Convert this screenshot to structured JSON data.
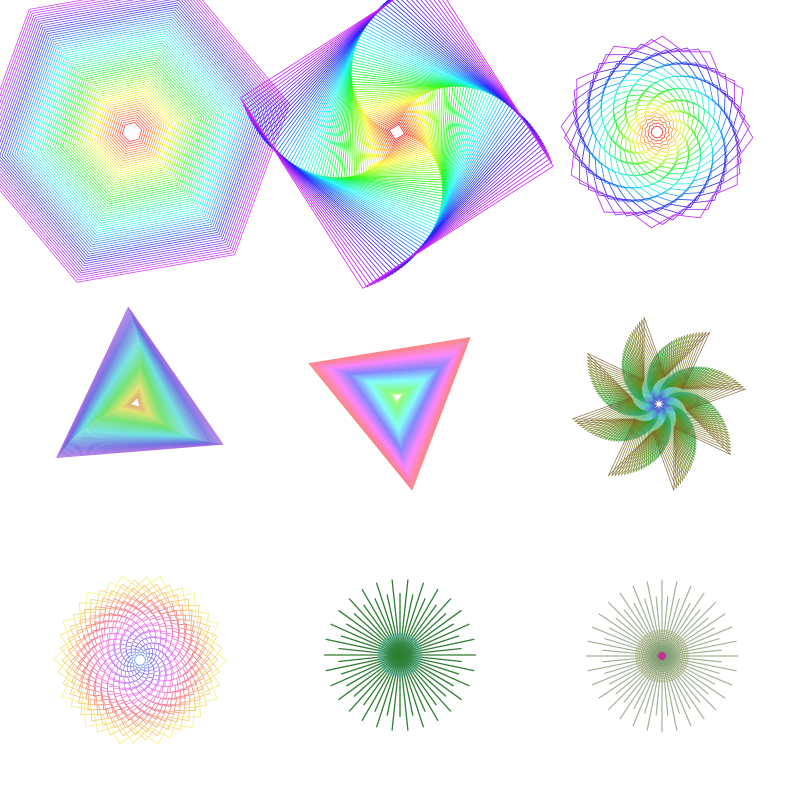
{
  "background_color": "#ffffff",
  "figures": [
    {
      "id": "rainbow-hexagon",
      "shape": "hexagon",
      "sides": 6,
      "palette": "rainbow",
      "icon": "hexagon-spiral-icon"
    },
    {
      "id": "swirl-square",
      "shape": "square",
      "sides": 4,
      "palette": "rainbow",
      "icon": "square-swirl-icon"
    },
    {
      "id": "star-spiral",
      "shape": "star",
      "sides": 24,
      "palette": "rainbow",
      "icon": "star-spiral-icon"
    },
    {
      "id": "pastel-triangle",
      "shape": "triangle",
      "sides": 3,
      "palette": "pastel",
      "icon": "triangle-icon"
    },
    {
      "id": "pink-triangle",
      "shape": "triangle",
      "sides": 3,
      "palette": "pink",
      "icon": "triangle-icon"
    },
    {
      "id": "green-8star",
      "shape": "star",
      "sides": 8,
      "palette": "green",
      "icon": "eight-point-star-icon"
    },
    {
      "id": "pastel-spiral",
      "shape": "star",
      "sides": 20,
      "palette": "pastel",
      "icon": "spiral-icon"
    },
    {
      "id": "green-burst",
      "shape": "burst",
      "sides": 60,
      "palette": "green",
      "icon": "starburst-icon"
    },
    {
      "id": "olive-burst",
      "shape": "burst",
      "sides": 60,
      "palette": "olive",
      "icon": "starburst-icon"
    }
  ],
  "colors": {
    "rainbow_hexagon": "#a050e0",
    "swirl_square": "#6a3af0",
    "star_spiral": "#5050ff",
    "pastel_triangle": "#b090e0",
    "pink_triangle": "#ff90c0",
    "green_star": "#2e7d32",
    "pastel_spiral": "#ff90b0",
    "green_burst": "#2e7d32",
    "olive_burst": "#8a9a78"
  }
}
